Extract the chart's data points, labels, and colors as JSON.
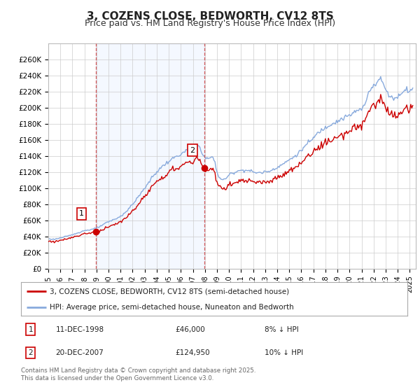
{
  "title": "3, COZENS CLOSE, BEDWORTH, CV12 8TS",
  "subtitle": "Price paid vs. HM Land Registry's House Price Index (HPI)",
  "title_fontsize": 11,
  "subtitle_fontsize": 9,
  "background_color": "#ffffff",
  "plot_bg_color": "#ffffff",
  "grid_color": "#cccccc",
  "line_color_hpi": "#88aadd",
  "line_color_paid": "#cc0000",
  "fill_color": "#ddeeff",
  "ylim": [
    0,
    280000
  ],
  "yticks": [
    0,
    20000,
    40000,
    60000,
    80000,
    100000,
    120000,
    140000,
    160000,
    180000,
    200000,
    220000,
    240000,
    260000
  ],
  "ytick_labels": [
    "£0",
    "£20K",
    "£40K",
    "£60K",
    "£80K",
    "£100K",
    "£120K",
    "£140K",
    "£160K",
    "£180K",
    "£200K",
    "£220K",
    "£240K",
    "£260K"
  ],
  "legend_label_paid": "3, COZENS CLOSE, BEDWORTH, CV12 8TS (semi-detached house)",
  "legend_label_hpi": "HPI: Average price, semi-detached house, Nuneaton and Bedworth",
  "annotation1_label": "1",
  "annotation1_date": "11-DEC-1998",
  "annotation1_price": "£46,000",
  "annotation1_hpi": "8% ↓ HPI",
  "annotation2_label": "2",
  "annotation2_date": "20-DEC-2007",
  "annotation2_price": "£124,950",
  "annotation2_hpi": "10% ↓ HPI",
  "tx1_x": 1998.95,
  "tx1_y": 46000,
  "tx2_x": 2007.95,
  "tx2_y": 124950,
  "footer": "Contains HM Land Registry data © Crown copyright and database right 2025.\nThis data is licensed under the Open Government Licence v3.0.",
  "xmin": 1995.0,
  "xmax": 2025.5,
  "xtick_years": [
    1995,
    1996,
    1997,
    1998,
    1999,
    2000,
    2001,
    2002,
    2003,
    2004,
    2005,
    2006,
    2007,
    2008,
    2009,
    2010,
    2011,
    2012,
    2013,
    2014,
    2015,
    2016,
    2017,
    2018,
    2019,
    2020,
    2021,
    2022,
    2023,
    2024,
    2025
  ]
}
